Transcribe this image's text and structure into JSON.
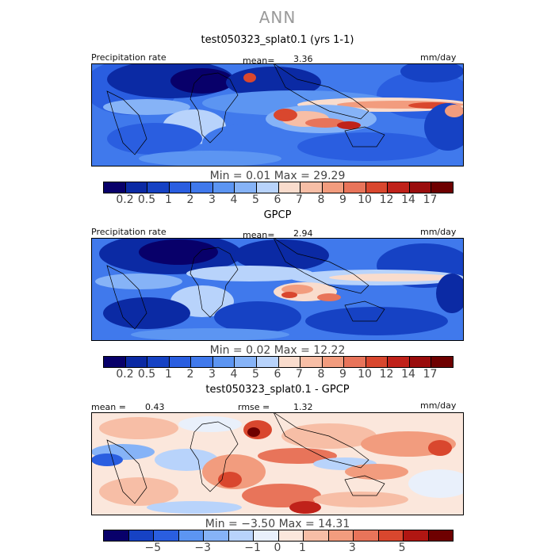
{
  "title": "ANN",
  "panels": [
    {
      "heading": "test050323_splat0.1 (yrs 1-1)",
      "left_label": "Precipitation rate",
      "center_label": "mean=",
      "center_value": "3.36",
      "right_label": "mm/day",
      "minmax": "Min =    0.01 Max =  29.29",
      "colorbar_labels": [
        "0.2",
        "0.5",
        "1",
        "2",
        "3",
        "4",
        "5",
        "6",
        "7",
        "8",
        "9",
        "10",
        "12",
        "14",
        "17"
      ]
    },
    {
      "heading": "GPCP",
      "left_label": "Precipitation rate",
      "center_label": "mean=",
      "center_value": "2.94",
      "right_label": "mm/day",
      "minmax": "Min =    0.02 Max =  12.22",
      "colorbar_labels": [
        "0.2",
        "0.5",
        "1",
        "2",
        "3",
        "4",
        "5",
        "6",
        "7",
        "8",
        "9",
        "10",
        "12",
        "14",
        "17"
      ]
    },
    {
      "heading": "test050323_splat0.1 - GPCP",
      "left_label": "mean =",
      "left_value": "0.43",
      "center_label": "rmse =",
      "center_value": "1.32",
      "right_label": "mm/day",
      "minmax": "Min =  −3.50 Max =  14.31",
      "colorbar_labels": [
        "−5",
        "−3",
        "−1",
        "0",
        "1",
        "3",
        "5"
      ]
    }
  ],
  "colors": {
    "seq": [
      "#08006a",
      "#0b2aa4",
      "#1642c4",
      "#2a5ee0",
      "#4079ec",
      "#5c95f2",
      "#86b3f7",
      "#b8d3fb",
      "#f9dccd",
      "#f7bea6",
      "#f29c7e",
      "#e8745a",
      "#d9472e",
      "#c0221a",
      "#9a0c0c",
      "#6e0000"
    ],
    "div": [
      "#08006a",
      "#1642c4",
      "#2a5ee0",
      "#5c95f2",
      "#86b3f7",
      "#b8d3fb",
      "#e9f0fb",
      "#fbe7dc",
      "#f7bea6",
      "#f29c7e",
      "#e8745a",
      "#d9472e",
      "#b01612",
      "#6e0000"
    ]
  }
}
